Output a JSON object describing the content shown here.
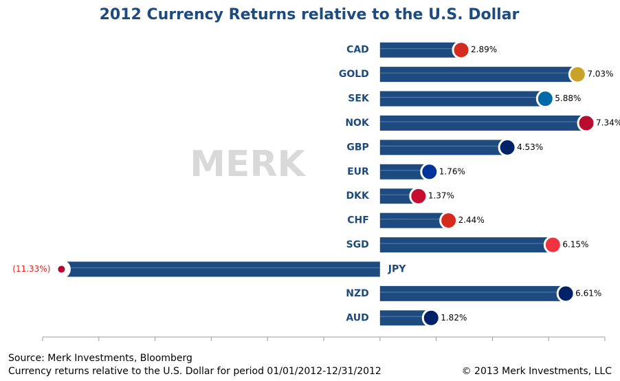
{
  "chart_data": {
    "type": "bar",
    "orientation": "horizontal",
    "title": "2012 Currency Returns relative to the U.S. Dollar",
    "categories": [
      "CAD",
      "GOLD",
      "SEK",
      "NOK",
      "GBP",
      "EUR",
      "DKK",
      "CHF",
      "SGD",
      "JPY",
      "NZD",
      "AUD"
    ],
    "values": [
      2.89,
      7.03,
      5.88,
      7.34,
      4.53,
      1.76,
      1.37,
      2.44,
      6.15,
      -11.33,
      6.61,
      1.82
    ],
    "value_labels": [
      "2.89%",
      "7.03%",
      "5.88%",
      "7.34%",
      "4.53%",
      "1.76%",
      "1.37%",
      "2.44%",
      "6.15%",
      "(11.33%)",
      "6.61%",
      "1.82%"
    ],
    "color": "#1d4b7f",
    "negative_label_color": "#e8201c",
    "xlim": [
      -12,
      8
    ],
    "xticks": [
      -12,
      -10,
      -8,
      -6,
      -4,
      -2,
      0,
      2,
      4,
      6,
      8
    ],
    "watermark": "MERK",
    "source": "Source: Merk Investments, Bloomberg",
    "note": "Currency returns relative to the U.S. Dollar for period 01/01/2012-12/31/2012",
    "copyright": "© 2013 Merk Investments, LLC"
  }
}
